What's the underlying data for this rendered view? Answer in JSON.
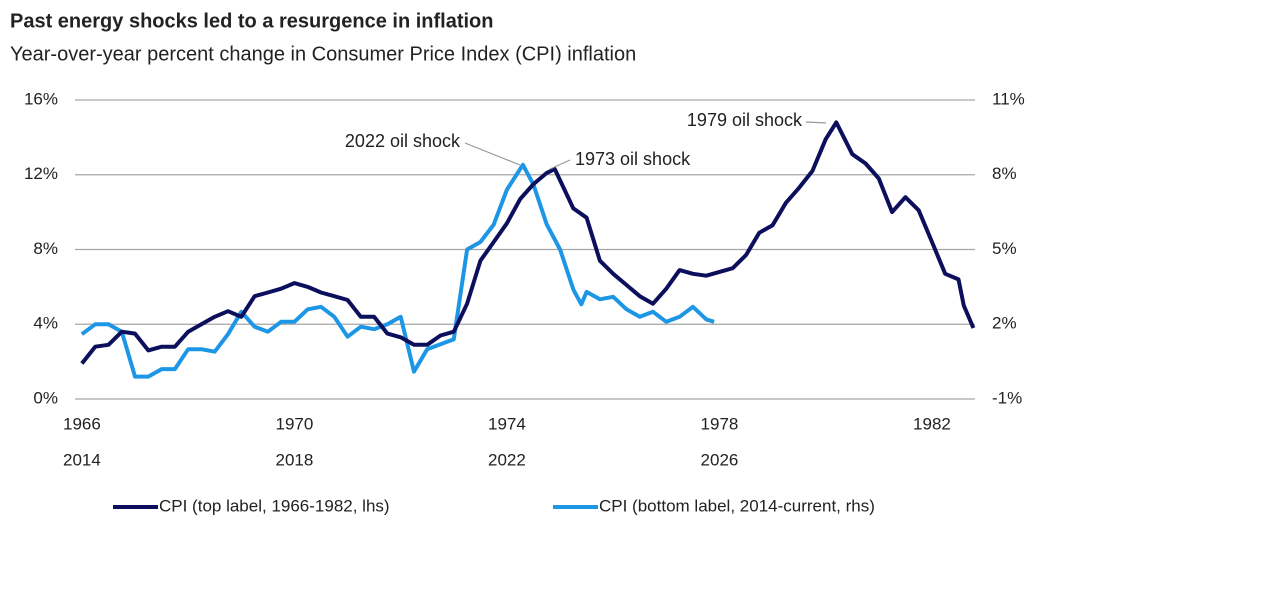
{
  "chart_data": {
    "type": "line",
    "title": "Past energy shocks led to a resurgence in inflation",
    "subtitle": "Year-over-year percent change in Consumer Price Index (CPI) inflation",
    "xlim": [
      1965.87,
      1982.81
    ],
    "xticks": [
      1966,
      1970,
      1974,
      1978,
      1982
    ],
    "x2lim": [
      2013.87,
      2030.81
    ],
    "x2ticks": [
      2014,
      2018,
      2022,
      2026
    ],
    "ylim": [
      0,
      16
    ],
    "yticks": [
      {
        "value": 0,
        "label": "0%"
      },
      {
        "value": 4,
        "label": "4%"
      },
      {
        "value": 8,
        "label": "8%"
      },
      {
        "value": 12,
        "label": "12%"
      },
      {
        "value": 16,
        "label": "16%"
      }
    ],
    "y2lim": [
      -1,
      11
    ],
    "y2ticks": [
      {
        "value": -1,
        "label": "-1%"
      },
      {
        "value": 2,
        "label": "2%"
      },
      {
        "value": 5,
        "label": "5%"
      },
      {
        "value": 8,
        "label": "8%"
      },
      {
        "value": 11,
        "label": "11%"
      }
    ],
    "grid": true,
    "legend": "bottom",
    "annotations": [
      "2022 oil shock",
      "1973 oil shock",
      "1979 oil shock"
    ],
    "series": [
      {
        "name": "CPI (top label, 1966-1982, lhs)",
        "color": "#0b0f5c",
        "axis": "y",
        "x_axis": "x",
        "x": [
          1966.0,
          1966.25,
          1966.5,
          1966.75,
          1967.0,
          1967.25,
          1967.5,
          1967.75,
          1968.0,
          1968.25,
          1968.5,
          1968.75,
          1969.0,
          1969.25,
          1969.5,
          1969.75,
          1970.0,
          1970.25,
          1970.5,
          1970.75,
          1971.0,
          1971.25,
          1971.5,
          1971.75,
          1972.0,
          1972.25,
          1972.5,
          1972.75,
          1973.0,
          1973.25,
          1973.5,
          1973.75,
          1974.0,
          1974.25,
          1974.5,
          1974.75,
          1974.9,
          1975.25,
          1975.5,
          1975.75,
          1976.0,
          1976.25,
          1976.5,
          1976.75,
          1977.0,
          1977.25,
          1977.5,
          1977.75,
          1978.0,
          1978.25,
          1978.5,
          1978.75,
          1979.0,
          1979.25,
          1979.5,
          1979.75,
          1980.0,
          1980.2,
          1980.5,
          1980.75,
          1981.0,
          1981.25,
          1981.5,
          1981.75,
          1982.0,
          1982.25,
          1982.5,
          1982.6,
          1982.78
        ],
        "values": [
          1.9,
          2.8,
          2.9,
          3.6,
          3.5,
          2.6,
          2.8,
          2.8,
          3.6,
          4.0,
          4.4,
          4.7,
          4.4,
          5.5,
          5.7,
          5.9,
          6.2,
          6.0,
          5.7,
          5.5,
          5.3,
          4.4,
          4.4,
          3.5,
          3.3,
          2.9,
          2.9,
          3.4,
          3.6,
          5.1,
          7.4,
          8.4,
          9.4,
          10.7,
          11.5,
          12.1,
          12.3,
          10.2,
          9.7,
          7.4,
          6.7,
          6.1,
          5.5,
          5.1,
          5.9,
          6.9,
          6.7,
          6.6,
          6.8,
          7.0,
          7.7,
          8.9,
          9.3,
          10.5,
          11.3,
          12.2,
          13.9,
          14.8,
          13.1,
          12.6,
          11.8,
          10.0,
          10.8,
          10.1,
          8.4,
          6.7,
          6.4,
          5.0,
          3.8
        ]
      },
      {
        "name": "CPI (bottom label, 2014-current, rhs)",
        "color": "#1e96e6",
        "axis": "y2",
        "x_axis": "x2",
        "x": [
          2014.0,
          2014.25,
          2014.5,
          2014.75,
          2015.0,
          2015.25,
          2015.5,
          2015.75,
          2016.0,
          2016.25,
          2016.5,
          2016.75,
          2017.0,
          2017.25,
          2017.5,
          2017.75,
          2018.0,
          2018.25,
          2018.5,
          2018.75,
          2019.0,
          2019.25,
          2019.5,
          2019.75,
          2020.0,
          2020.25,
          2020.5,
          2020.75,
          2021.0,
          2021.25,
          2021.5,
          2021.75,
          2022.0,
          2022.3,
          2022.5,
          2022.75,
          2023.0,
          2023.25,
          2023.4,
          2023.5,
          2023.75,
          2024.0,
          2024.25,
          2024.5,
          2024.75,
          2025.0,
          2025.25,
          2025.5,
          2025.75,
          2025.9
        ],
        "values": [
          1.6,
          2.0,
          2.0,
          1.7,
          -0.1,
          -0.1,
          0.2,
          0.2,
          1.0,
          1.0,
          0.9,
          1.6,
          2.5,
          1.9,
          1.7,
          2.1,
          2.1,
          2.6,
          2.7,
          2.3,
          1.5,
          1.9,
          1.8,
          2.0,
          2.3,
          0.1,
          1.0,
          1.2,
          1.4,
          5.0,
          5.3,
          6.0,
          7.4,
          8.4,
          7.6,
          6.0,
          5.0,
          3.4,
          2.8,
          3.3,
          3.0,
          3.1,
          2.6,
          2.3,
          2.5,
          2.1,
          2.3,
          2.7,
          2.2,
          2.1
        ]
      }
    ]
  }
}
